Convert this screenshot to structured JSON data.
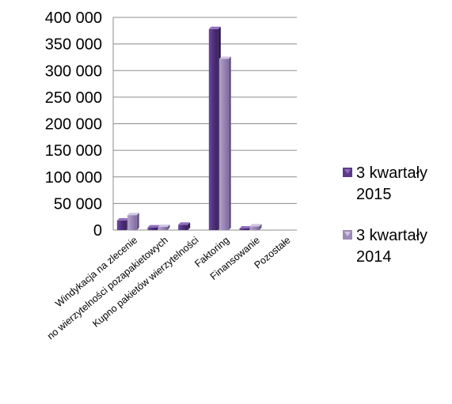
{
  "chart_data": {
    "type": "bar",
    "style": "3d-clustered-column",
    "categories": [
      "Windykacja na zlecenie",
      "Kupno wierzytelności pozapakietowych",
      "Kupno pakietów wierzytelności",
      "Faktoring",
      "Finansowanie",
      "Pozostałe"
    ],
    "category_label_display": [
      "Windykacja na zlecenie",
      "no wierzytelności pozapakietowych",
      "Kupno pakietów wierzytelności",
      "Faktoring",
      "Finansowanie",
      "Pozostałe"
    ],
    "series": [
      {
        "name_line1": "3 kwartały",
        "name_line2": "2015",
        "color": "#5b3a8a",
        "values": [
          18000,
          5000,
          10000,
          378000,
          3000,
          0
        ]
      },
      {
        "name_line1": "3 kwartały",
        "name_line2": "2014",
        "color": "#9d8ab8",
        "values": [
          28000,
          6000,
          0,
          322000,
          7000,
          0
        ]
      }
    ],
    "ylim": [
      0,
      400000
    ],
    "yticks": [
      0,
      50000,
      100000,
      150000,
      200000,
      250000,
      300000,
      350000,
      400000
    ],
    "ytick_labels": [
      "0",
      "50 000",
      "100 000",
      "150 000",
      "200 000",
      "250 000",
      "300 000",
      "350 000",
      "400 000"
    ],
    "grid": true,
    "legend_position": "right"
  }
}
